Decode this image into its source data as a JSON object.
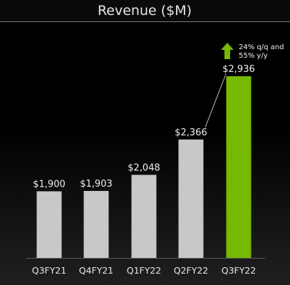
{
  "chart_data": {
    "type": "bar",
    "title": "Revenue ($M)",
    "categories": [
      "Q3FY21",
      "Q4FY21",
      "Q1FY22",
      "Q2FY22",
      "Q3FY22"
    ],
    "values": [
      1900,
      1903,
      2048,
      2366,
      2936
    ],
    "data_labels": [
      "$1,900",
      "$1,903",
      "$2,048",
      "$2,366",
      "$2,936"
    ],
    "xlabel": "",
    "ylabel": "",
    "ylim": [
      1300,
      2936
    ],
    "grid": false,
    "legend": "none",
    "colors": {
      "default_bar": "#c8c8c8",
      "highlight_bar": "#76b900",
      "highlight_arrow": "#76b900"
    },
    "highlight_index": 4,
    "annotation": {
      "line1": "24% q/q and",
      "line2": "55% y/y",
      "icon": "up-arrow-icon"
    }
  }
}
